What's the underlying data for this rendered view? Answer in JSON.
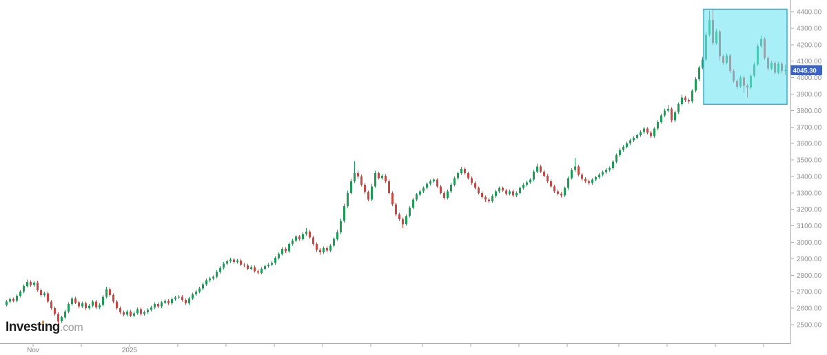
{
  "watermark": {
    "part1": "Invest",
    "dotless_i": "ı",
    "part2": "ng",
    "suffix": ".com",
    "dot_color": "#F07D1A"
  },
  "price_label": {
    "value": "4045.30",
    "bg_color": "#3B63C6",
    "text_color": "#FFFFFF"
  },
  "chart_data": {
    "type": "candlestick",
    "title": "",
    "legend_position": "none",
    "grid": false,
    "background": "#ffffff",
    "current_price": 4045.3,
    "colors": {
      "up": "#1D9E54",
      "down": "#CA4841",
      "axis": "#a6a6a6"
    },
    "y_axis": {
      "side": "right",
      "ticks": [
        4400,
        4300,
        4200,
        4100,
        4000,
        3900,
        3800,
        3700,
        3600,
        3500,
        3400,
        3300,
        3200,
        3100,
        3000,
        2900,
        2800,
        2700,
        2600,
        2500
      ],
      "labels": [
        "4400.00",
        "4300.00",
        "4200.00",
        "4100.00",
        "4000.00",
        "3900.00",
        "3800.00",
        "3700.00",
        "3600.00",
        "3500.00",
        "3400.00",
        "3300.00",
        "3200.00",
        "3100.00",
        "3000.00",
        "2900.00",
        "2800.00",
        "2700.00",
        "2600.00",
        "2500.00"
      ]
    },
    "x_axis": {
      "tick_indices": [
        8,
        22,
        36,
        50,
        64,
        78,
        92,
        106,
        121,
        135,
        149,
        163,
        178,
        192,
        206,
        220
      ],
      "tick_labels": [
        "Nov",
        "",
        "2025",
        "",
        "",
        "",
        "",
        "",
        "",
        "",
        "",
        "",
        "",
        "",
        "",
        ""
      ]
    },
    "highlight_box": {
      "start_index": 203,
      "end_index": 226,
      "price_top": 4415,
      "price_bottom": 3838,
      "fill": "rgba(110,229,242,0.60)",
      "border": "#36AFD1"
    },
    "candles": [
      [
        2620,
        2650,
        2610,
        2640
      ],
      [
        2640,
        2665,
        2630,
        2655
      ],
      [
        2655,
        2665,
        2635,
        2645
      ],
      [
        2645,
        2685,
        2635,
        2675
      ],
      [
        2675,
        2710,
        2665,
        2700
      ],
      [
        2700,
        2745,
        2690,
        2735
      ],
      [
        2735,
        2775,
        2725,
        2760
      ],
      [
        2760,
        2770,
        2730,
        2740
      ],
      [
        2740,
        2765,
        2730,
        2755
      ],
      [
        2755,
        2765,
        2700,
        2710
      ],
      [
        2710,
        2720,
        2670,
        2680
      ],
      [
        2680,
        2700,
        2670,
        2690
      ],
      [
        2690,
        2700,
        2630,
        2640
      ],
      [
        2640,
        2650,
        2590,
        2600
      ],
      [
        2600,
        2610,
        2555,
        2565
      ],
      [
        2565,
        2575,
        2504,
        2520
      ],
      [
        2520,
        2555,
        2510,
        2545
      ],
      [
        2545,
        2590,
        2535,
        2580
      ],
      [
        2580,
        2635,
        2570,
        2625
      ],
      [
        2625,
        2670,
        2615,
        2660
      ],
      [
        2660,
        2670,
        2625,
        2635
      ],
      [
        2635,
        2645,
        2600,
        2610
      ],
      [
        2610,
        2640,
        2600,
        2630
      ],
      [
        2630,
        2640,
        2590,
        2600
      ],
      [
        2600,
        2625,
        2590,
        2615
      ],
      [
        2615,
        2650,
        2605,
        2640
      ],
      [
        2640,
        2650,
        2595,
        2605
      ],
      [
        2605,
        2630,
        2595,
        2620
      ],
      [
        2620,
        2680,
        2610,
        2670
      ],
      [
        2670,
        2730,
        2660,
        2715
      ],
      [
        2715,
        2725,
        2670,
        2680
      ],
      [
        2680,
        2690,
        2630,
        2640
      ],
      [
        2640,
        2650,
        2590,
        2600
      ],
      [
        2600,
        2610,
        2565,
        2575
      ],
      [
        2575,
        2585,
        2550,
        2560
      ],
      [
        2560,
        2590,
        2550,
        2580
      ],
      [
        2580,
        2590,
        2545,
        2555
      ],
      [
        2555,
        2580,
        2545,
        2570
      ],
      [
        2570,
        2605,
        2560,
        2595
      ],
      [
        2595,
        2605,
        2555,
        2565
      ],
      [
        2565,
        2585,
        2555,
        2575
      ],
      [
        2575,
        2600,
        2565,
        2590
      ],
      [
        2590,
        2615,
        2580,
        2605
      ],
      [
        2605,
        2635,
        2595,
        2625
      ],
      [
        2625,
        2635,
        2600,
        2610
      ],
      [
        2610,
        2645,
        2600,
        2635
      ],
      [
        2635,
        2655,
        2625,
        2645
      ],
      [
        2645,
        2655,
        2620,
        2630
      ],
      [
        2630,
        2665,
        2620,
        2655
      ],
      [
        2655,
        2675,
        2645,
        2665
      ],
      [
        2665,
        2680,
        2655,
        2670
      ],
      [
        2670,
        2680,
        2640,
        2650
      ],
      [
        2650,
        2660,
        2620,
        2630
      ],
      [
        2630,
        2670,
        2620,
        2660
      ],
      [
        2660,
        2695,
        2650,
        2685
      ],
      [
        2685,
        2710,
        2675,
        2700
      ],
      [
        2700,
        2730,
        2690,
        2720
      ],
      [
        2720,
        2755,
        2710,
        2745
      ],
      [
        2745,
        2780,
        2735,
        2770
      ],
      [
        2770,
        2790,
        2760,
        2780
      ],
      [
        2780,
        2800,
        2770,
        2790
      ],
      [
        2790,
        2830,
        2780,
        2820
      ],
      [
        2820,
        2855,
        2810,
        2845
      ],
      [
        2845,
        2880,
        2835,
        2870
      ],
      [
        2870,
        2895,
        2860,
        2885
      ],
      [
        2885,
        2905,
        2875,
        2895
      ],
      [
        2895,
        2905,
        2870,
        2880
      ],
      [
        2880,
        2900,
        2870,
        2890
      ],
      [
        2890,
        2900,
        2855,
        2865
      ],
      [
        2865,
        2875,
        2850,
        2860
      ],
      [
        2860,
        2870,
        2830,
        2840
      ],
      [
        2840,
        2860,
        2830,
        2850
      ],
      [
        2850,
        2860,
        2815,
        2825
      ],
      [
        2825,
        2835,
        2805,
        2815
      ],
      [
        2815,
        2850,
        2805,
        2840
      ],
      [
        2840,
        2865,
        2830,
        2855
      ],
      [
        2855,
        2875,
        2845,
        2865
      ],
      [
        2865,
        2885,
        2855,
        2875
      ],
      [
        2875,
        2915,
        2865,
        2905
      ],
      [
        2905,
        2940,
        2895,
        2930
      ],
      [
        2930,
        2970,
        2920,
        2960
      ],
      [
        2960,
        2970,
        2935,
        2945
      ],
      [
        2945,
        3000,
        2935,
        2990
      ],
      [
        2990,
        3020,
        2980,
        3010
      ],
      [
        3010,
        3045,
        3000,
        3035
      ],
      [
        3035,
        3045,
        3010,
        3020
      ],
      [
        3020,
        3060,
        3010,
        3050
      ],
      [
        3050,
        3085,
        3040,
        3065
      ],
      [
        3065,
        3075,
        3020,
        3030
      ],
      [
        3030,
        3040,
        2980,
        2990
      ],
      [
        2990,
        3000,
        2940,
        2955
      ],
      [
        2955,
        2965,
        2925,
        2940
      ],
      [
        2940,
        2975,
        2930,
        2965
      ],
      [
        2965,
        2975,
        2940,
        2950
      ],
      [
        2950,
        2990,
        2940,
        2980
      ],
      [
        2980,
        3030,
        2970,
        3020
      ],
      [
        3020,
        3075,
        3010,
        3060
      ],
      [
        3060,
        3145,
        3050,
        3130
      ],
      [
        3130,
        3235,
        3120,
        3220
      ],
      [
        3220,
        3315,
        3210,
        3300
      ],
      [
        3300,
        3385,
        3290,
        3370
      ],
      [
        3370,
        3492,
        3360,
        3420
      ],
      [
        3420,
        3435,
        3385,
        3400
      ],
      [
        3400,
        3410,
        3340,
        3350
      ],
      [
        3350,
        3360,
        3295,
        3305
      ],
      [
        3305,
        3315,
        3250,
        3260
      ],
      [
        3260,
        3355,
        3250,
        3340
      ],
      [
        3340,
        3435,
        3330,
        3420
      ],
      [
        3420,
        3430,
        3380,
        3390
      ],
      [
        3390,
        3415,
        3380,
        3405
      ],
      [
        3405,
        3415,
        3360,
        3370
      ],
      [
        3370,
        3380,
        3290,
        3300
      ],
      [
        3300,
        3310,
        3220,
        3230
      ],
      [
        3230,
        3240,
        3160,
        3170
      ],
      [
        3170,
        3180,
        3130,
        3140
      ],
      [
        3140,
        3150,
        3086,
        3110
      ],
      [
        3110,
        3170,
        3100,
        3160
      ],
      [
        3160,
        3220,
        3150,
        3210
      ],
      [
        3210,
        3270,
        3200,
        3260
      ],
      [
        3260,
        3300,
        3250,
        3290
      ],
      [
        3290,
        3320,
        3280,
        3310
      ],
      [
        3310,
        3340,
        3300,
        3330
      ],
      [
        3330,
        3365,
        3320,
        3355
      ],
      [
        3355,
        3380,
        3345,
        3370
      ],
      [
        3370,
        3390,
        3360,
        3380
      ],
      [
        3380,
        3390,
        3330,
        3340
      ],
      [
        3340,
        3350,
        3290,
        3300
      ],
      [
        3300,
        3310,
        3260,
        3270
      ],
      [
        3270,
        3320,
        3260,
        3310
      ],
      [
        3310,
        3360,
        3300,
        3350
      ],
      [
        3350,
        3400,
        3340,
        3390
      ],
      [
        3390,
        3430,
        3380,
        3420
      ],
      [
        3420,
        3458,
        3410,
        3445
      ],
      [
        3445,
        3455,
        3410,
        3420
      ],
      [
        3420,
        3430,
        3380,
        3390
      ],
      [
        3390,
        3400,
        3350,
        3360
      ],
      [
        3360,
        3370,
        3320,
        3330
      ],
      [
        3330,
        3340,
        3290,
        3300
      ],
      [
        3300,
        3310,
        3265,
        3275
      ],
      [
        3275,
        3285,
        3245,
        3260
      ],
      [
        3260,
        3270,
        3238,
        3250
      ],
      [
        3250,
        3290,
        3240,
        3280
      ],
      [
        3280,
        3320,
        3270,
        3310
      ],
      [
        3310,
        3340,
        3300,
        3330
      ],
      [
        3330,
        3340,
        3305,
        3315
      ],
      [
        3315,
        3325,
        3285,
        3295
      ],
      [
        3295,
        3320,
        3285,
        3310
      ],
      [
        3310,
        3320,
        3275,
        3285
      ],
      [
        3285,
        3310,
        3275,
        3300
      ],
      [
        3300,
        3340,
        3290,
        3330
      ],
      [
        3330,
        3360,
        3320,
        3350
      ],
      [
        3350,
        3375,
        3340,
        3365
      ],
      [
        3365,
        3390,
        3355,
        3380
      ],
      [
        3380,
        3440,
        3370,
        3430
      ],
      [
        3430,
        3478,
        3420,
        3460
      ],
      [
        3460,
        3470,
        3420,
        3430
      ],
      [
        3430,
        3440,
        3395,
        3405
      ],
      [
        3405,
        3415,
        3360,
        3370
      ],
      [
        3370,
        3380,
        3330,
        3340
      ],
      [
        3340,
        3350,
        3300,
        3310
      ],
      [
        3310,
        3320,
        3285,
        3295
      ],
      [
        3295,
        3305,
        3272,
        3285
      ],
      [
        3285,
        3340,
        3275,
        3330
      ],
      [
        3330,
        3400,
        3320,
        3390
      ],
      [
        3390,
        3450,
        3380,
        3440
      ],
      [
        3440,
        3512,
        3430,
        3460
      ],
      [
        3460,
        3470,
        3400,
        3410
      ],
      [
        3410,
        3420,
        3375,
        3385
      ],
      [
        3385,
        3395,
        3360,
        3370
      ],
      [
        3370,
        3380,
        3350,
        3360
      ],
      [
        3360,
        3390,
        3350,
        3380
      ],
      [
        3380,
        3405,
        3370,
        3395
      ],
      [
        3395,
        3420,
        3385,
        3410
      ],
      [
        3410,
        3435,
        3400,
        3425
      ],
      [
        3425,
        3450,
        3415,
        3440
      ],
      [
        3440,
        3460,
        3430,
        3450
      ],
      [
        3450,
        3500,
        3440,
        3490
      ],
      [
        3490,
        3540,
        3480,
        3530
      ],
      [
        3530,
        3572,
        3520,
        3560
      ],
      [
        3560,
        3590,
        3550,
        3580
      ],
      [
        3580,
        3612,
        3570,
        3600
      ],
      [
        3600,
        3630,
        3590,
        3620
      ],
      [
        3620,
        3645,
        3610,
        3635
      ],
      [
        3635,
        3660,
        3625,
        3650
      ],
      [
        3650,
        3680,
        3640,
        3670
      ],
      [
        3670,
        3702,
        3660,
        3690
      ],
      [
        3690,
        3700,
        3655,
        3665
      ],
      [
        3665,
        3675,
        3635,
        3645
      ],
      [
        3645,
        3700,
        3635,
        3690
      ],
      [
        3690,
        3740,
        3680,
        3730
      ],
      [
        3730,
        3780,
        3720,
        3770
      ],
      [
        3770,
        3812,
        3760,
        3800
      ],
      [
        3800,
        3835,
        3790,
        3810
      ],
      [
        3810,
        3820,
        3728,
        3740
      ],
      [
        3740,
        3800,
        3730,
        3790
      ],
      [
        3790,
        3850,
        3780,
        3840
      ],
      [
        3840,
        3895,
        3830,
        3880
      ],
      [
        3880,
        3890,
        3852,
        3865
      ],
      [
        3865,
        3875,
        3842,
        3855
      ],
      [
        3855,
        3930,
        3845,
        3920
      ],
      [
        3920,
        4002,
        3910,
        3990
      ],
      [
        3990,
        4072,
        3980,
        4060
      ],
      [
        4060,
        4125,
        4050,
        4110
      ],
      [
        4110,
        4275,
        4100,
        4260
      ],
      [
        4260,
        4405,
        4250,
        4350
      ],
      [
        4350,
        4412,
        4195,
        4210
      ],
      [
        4210,
        4295,
        4200,
        4280
      ],
      [
        4280,
        4290,
        4105,
        4130
      ],
      [
        4130,
        4140,
        4078,
        4090
      ],
      [
        4090,
        4148,
        4080,
        4135
      ],
      [
        4135,
        4145,
        4028,
        4040
      ],
      [
        4040,
        4050,
        3968,
        3980
      ],
      [
        3980,
        3990,
        3930,
        3945
      ],
      [
        3945,
        4012,
        3935,
        4000
      ],
      [
        4000,
        4010,
        3908,
        3950
      ],
      [
        3950,
        3962,
        3878,
        3940
      ],
      [
        3940,
        4022,
        3930,
        4010
      ],
      [
        4010,
        4092,
        4000,
        4080
      ],
      [
        4080,
        4205,
        4070,
        4190
      ],
      [
        4190,
        4256,
        4180,
        4235
      ],
      [
        4235,
        4245,
        4108,
        4120
      ],
      [
        4120,
        4130,
        4042,
        4055
      ],
      [
        4055,
        4102,
        4045,
        4090
      ],
      [
        4090,
        4100,
        4018,
        4030
      ],
      [
        4030,
        4096,
        4020,
        4085
      ],
      [
        4085,
        4095,
        4028,
        4040
      ],
      [
        4040,
        4078,
        4018,
        4045.3
      ]
    ]
  }
}
